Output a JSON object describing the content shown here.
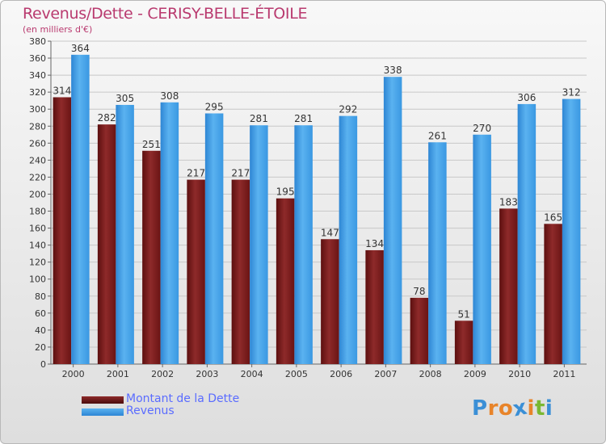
{
  "title": "Revenus/Dette - CERISY-BELLE-ÉTOILE",
  "subtitle": "(en milliers d'€)",
  "chart_data": {
    "type": "bar",
    "title": "Revenus/Dette - CERISY-BELLE-ÉTOILE",
    "ylabel": "(en milliers d'€)",
    "xlabel": "",
    "categories": [
      "2000",
      "2001",
      "2002",
      "2003",
      "2004",
      "2005",
      "2006",
      "2007",
      "2008",
      "2009",
      "2010",
      "2011"
    ],
    "series": [
      {
        "name": "Montant de la Dette",
        "color": "#7a1c1c",
        "values": [
          314,
          282,
          251,
          217,
          217,
          195,
          147,
          134,
          78,
          51,
          183,
          165
        ]
      },
      {
        "name": "Revenus",
        "color": "#3f9fe6",
        "values": [
          364,
          305,
          308,
          295,
          281,
          281,
          292,
          338,
          261,
          270,
          306,
          312
        ]
      }
    ],
    "ylim": [
      0,
      380
    ],
    "ytick_step": 20,
    "grid": true,
    "legend_position": "bottom-left"
  },
  "legend": [
    {
      "label": "Montant de la Dette"
    },
    {
      "label": "Revenus"
    }
  ],
  "logo": {
    "letters": [
      "P",
      "r",
      "o",
      "x",
      "i",
      "t",
      "i"
    ],
    "colors": [
      "#3a8fd6",
      "#e8842a",
      "#e8842a",
      "#3a8fd6",
      "#e8842a",
      "#7ab832",
      "#3a8fd6"
    ]
  }
}
